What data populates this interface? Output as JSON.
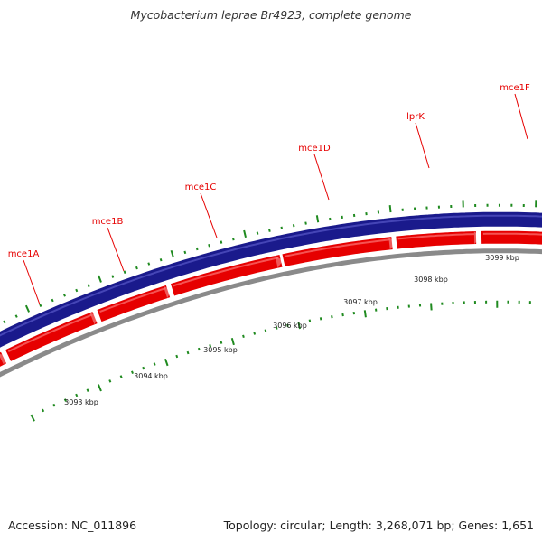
{
  "title": "Mycobacterium leprae Br4923, complete genome",
  "accession": "Accession: NC_011896",
  "summary": "Topology: circular; Length: 3,268,071 bp; Genes: 1,651",
  "colors": {
    "forward_strand": "#1a1a8c",
    "reverse_genes": "#e60000",
    "backbone": "#8a8a8a",
    "tick": "#1f8a1f",
    "label": "#e60000"
  },
  "genes": [
    "mce1A",
    "mce1B",
    "mce1C",
    "mce1D",
    "lprK",
    "mce1F"
  ],
  "scale_labels": [
    "3093 kbp",
    "3094 kbp",
    "3095 kbp",
    "3096 kbp",
    "3097 kbp",
    "3098 kbp",
    "3099 kbp"
  ]
}
